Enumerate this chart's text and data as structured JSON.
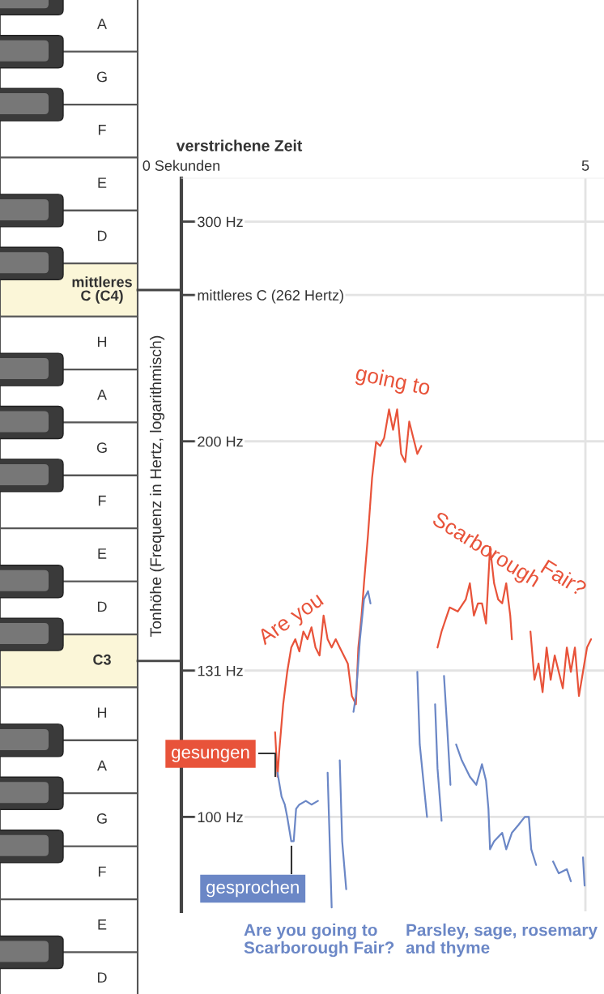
{
  "chart_data": {
    "type": "line",
    "xlabel": "verstrichene Zeit",
    "ylabel": "Tonhöhe (Frequenz in Hertz, logarithmisch)",
    "log": "y",
    "xlim": [
      0,
      5.23
    ],
    "xticks": [
      {
        "value": 0,
        "label": "0 Sekunden"
      },
      5
    ],
    "ylim": [
      84,
      325
    ],
    "yticks": [
      {
        "value": 100,
        "label": "100 Hz"
      },
      {
        "value": 131,
        "label": "131 Hz"
      },
      {
        "value": 200,
        "label": "200 Hz"
      },
      {
        "value": 262,
        "label": "mittleres C (262 Hertz)"
      },
      {
        "value": 300,
        "label": "300 Hz"
      }
    ],
    "grid": true,
    "legend": false,
    "series": [
      {
        "name": "gesungen",
        "color": "#e8533a",
        "x": [
          1.16,
          1.19,
          1.21,
          1.26,
          1.31,
          1.36,
          1.41,
          1.46,
          1.51,
          1.56,
          1.61,
          1.66,
          1.71,
          1.76,
          1.81,
          1.86,
          1.91,
          1.96,
          2.01,
          2.06,
          2.11,
          2.16,
          2.19,
          2.23,
          2.26,
          2.31,
          2.36,
          2.41,
          2.46,
          2.51,
          2.57,
          2.62,
          2.67,
          2.72,
          2.77,
          2.82,
          2.87,
          2.92,
          2.97,
          3.1,
          3.17,
          3.22,
          3.32,
          3.42,
          3.52,
          3.57,
          3.62,
          3.67,
          3.72,
          3.77,
          3.82,
          3.87,
          3.92,
          3.97,
          4.02,
          4.07,
          4.09,
          4.2,
          4.32,
          4.37,
          4.42,
          4.47,
          4.52,
          4.57,
          4.62,
          4.67,
          4.72,
          4.77,
          4.82,
          4.87,
          4.92,
          4.97,
          5.02,
          5.07
        ],
        "values": [
          116.9,
          107.7,
          112.6,
          123.1,
          130.7,
          136.7,
          138.8,
          135.7,
          140.8,
          138.8,
          141.9,
          136.7,
          134.7,
          145.0,
          138.8,
          136.7,
          138.8,
          136.7,
          134.7,
          132.7,
          125.0,
          123.1,
          136.7,
          145.0,
          153.9,
          168.4,
          186.9,
          199.8,
          198.3,
          201.3,
          212.1,
          204.3,
          212.1,
          195.4,
          192.5,
          207.4,
          201.3,
          195.4,
          198.3,
          null,
          136.7,
          140.8,
          147.2,
          146.1,
          149.4,
          153.9,
          145.0,
          148.3,
          148.3,
          142.9,
          164.6,
          153.9,
          149.4,
          148.3,
          153.9,
          145.0,
          138.8,
          null,
          140.8,
          128.8,
          132.7,
          125.9,
          136.7,
          128.8,
          134.7,
          130.7,
          126.8,
          136.7,
          130.7,
          136.7,
          125.0,
          130.7,
          136.7,
          138.8
        ]
      },
      {
        "name": "gesprochen",
        "color": "#6b87c6",
        "x": [
          1.19,
          1.24,
          1.28,
          1.31,
          1.36,
          1.39,
          1.42,
          1.46,
          1.54,
          1.61,
          1.69,
          1.75,
          1.81,
          1.86,
          1.91,
          1.96,
          1.99,
          2.04,
          2.08,
          2.13,
          2.16,
          2.21,
          2.26,
          2.31,
          2.34,
          2.6,
          2.92,
          2.95,
          3.0,
          3.04,
          3.1,
          3.14,
          3.17,
          3.22,
          3.235,
          3.25,
          3.29,
          3.33,
          3.37,
          3.4,
          3.47,
          3.57,
          3.65,
          3.72,
          3.77,
          3.8,
          3.82,
          3.87,
          3.97,
          4.02,
          4.09,
          4.17,
          4.25,
          4.3,
          4.33,
          4.39,
          4.5,
          4.6,
          4.67,
          4.77,
          4.82,
          4.9,
          4.97,
          4.99
        ],
        "values": [
          108.5,
          103.8,
          102.3,
          100,
          95.6,
          95.6,
          101.5,
          102.3,
          103.0,
          102.3,
          103.0,
          null,
          108.5,
          84.6,
          null,
          111.0,
          95.6,
          87.5,
          null,
          121.4,
          125.0,
          138.8,
          149.4,
          151.7,
          148.3,
          null,
          130.7,
          114.3,
          106.1,
          100,
          null,
          123.1,
          109.3,
          99.3,
          null,
          129.7,
          117.8,
          106.1,
          null,
          114.3,
          111.0,
          107.7,
          106.1,
          110.2,
          106.9,
          101.5,
          94.2,
          95.6,
          97.1,
          94.2,
          97.1,
          98.5,
          100,
          100,
          94.2,
          91.5,
          null,
          92.1,
          90.1,
          90.8,
          88.8,
          null,
          92.8,
          88.1
        ]
      }
    ],
    "annotations": [
      "A",
      "G",
      "F",
      "E",
      "D",
      "mittleres\nC (C4)",
      "H",
      "A",
      "G",
      "F",
      "E",
      "D",
      "C3",
      "H",
      "A",
      "G",
      "F",
      "E",
      "D",
      "Are you",
      "going to",
      "Scarborough",
      "Fair?",
      "Are you going to\nScarborough Fair?",
      "Parsley, sage, rosemary\nand thyme"
    ]
  }
}
